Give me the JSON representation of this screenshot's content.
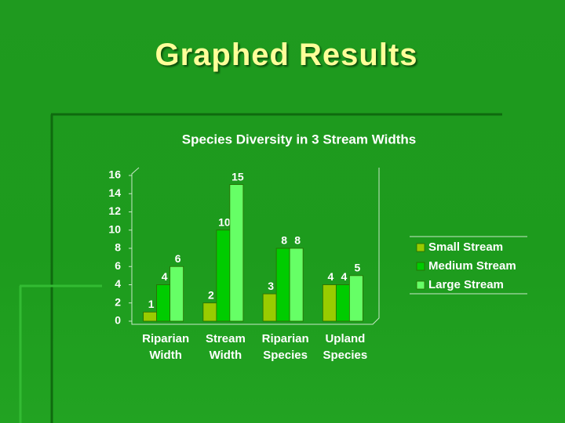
{
  "slide_title": "Graphed Results",
  "chart_data": {
    "type": "bar",
    "title": "Species Diversity in 3 Stream Widths",
    "categories": [
      "Riparian Width",
      "Stream Width",
      "Riparian Species",
      "Upland Species"
    ],
    "series": [
      {
        "name": "Small Stream",
        "color": "#99cc00",
        "values": [
          1,
          2,
          3,
          4
        ]
      },
      {
        "name": "Medium Stream",
        "color": "#00cc00",
        "values": [
          4,
          10,
          8,
          4
        ]
      },
      {
        "name": "Large Stream",
        "color": "#66ff66",
        "values": [
          6,
          15,
          8,
          5
        ]
      }
    ],
    "ylim": [
      0,
      16
    ],
    "yticks": [
      0,
      2,
      4,
      6,
      8,
      10,
      12,
      14,
      16
    ],
    "grid": false,
    "legend": "right"
  }
}
